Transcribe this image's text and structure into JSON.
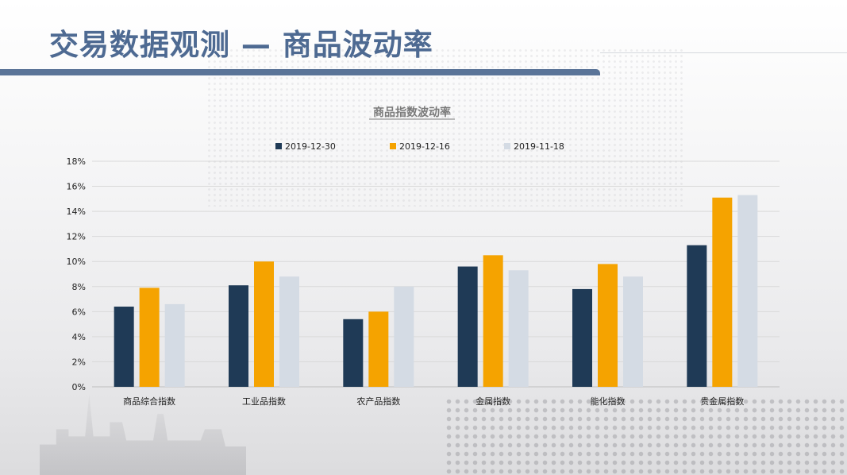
{
  "header": {
    "title": "交易数据观测 — 商品波动率"
  },
  "colors": {
    "title": "#4e6a92",
    "rule": "#5a7498"
  },
  "chart_data": {
    "type": "bar",
    "title": "商品指数波动率",
    "categories": [
      "商品综合指数",
      "工业品指数",
      "农产品指数",
      "金属指数",
      "能化指数",
      "贵金属指数"
    ],
    "series": [
      {
        "name": "2019-12-30",
        "color": "#1f3a56",
        "values": [
          6.4,
          8.1,
          5.4,
          9.6,
          7.8,
          11.3
        ]
      },
      {
        "name": "2019-12-16",
        "color": "#f5a300",
        "values": [
          7.9,
          10.0,
          6.0,
          10.5,
          9.8,
          15.1
        ]
      },
      {
        "name": "2019-11-18",
        "color": "#d4dbe4",
        "values": [
          6.6,
          8.8,
          8.0,
          9.3,
          8.8,
          15.3
        ]
      }
    ],
    "y_ticks": [
      "0%",
      "2%",
      "4%",
      "6%",
      "8%",
      "10%",
      "12%",
      "14%",
      "16%",
      "18%"
    ],
    "ylim": [
      0,
      18
    ],
    "xlabel": "",
    "ylabel": "",
    "grid": true,
    "legend_position": "top-center"
  }
}
